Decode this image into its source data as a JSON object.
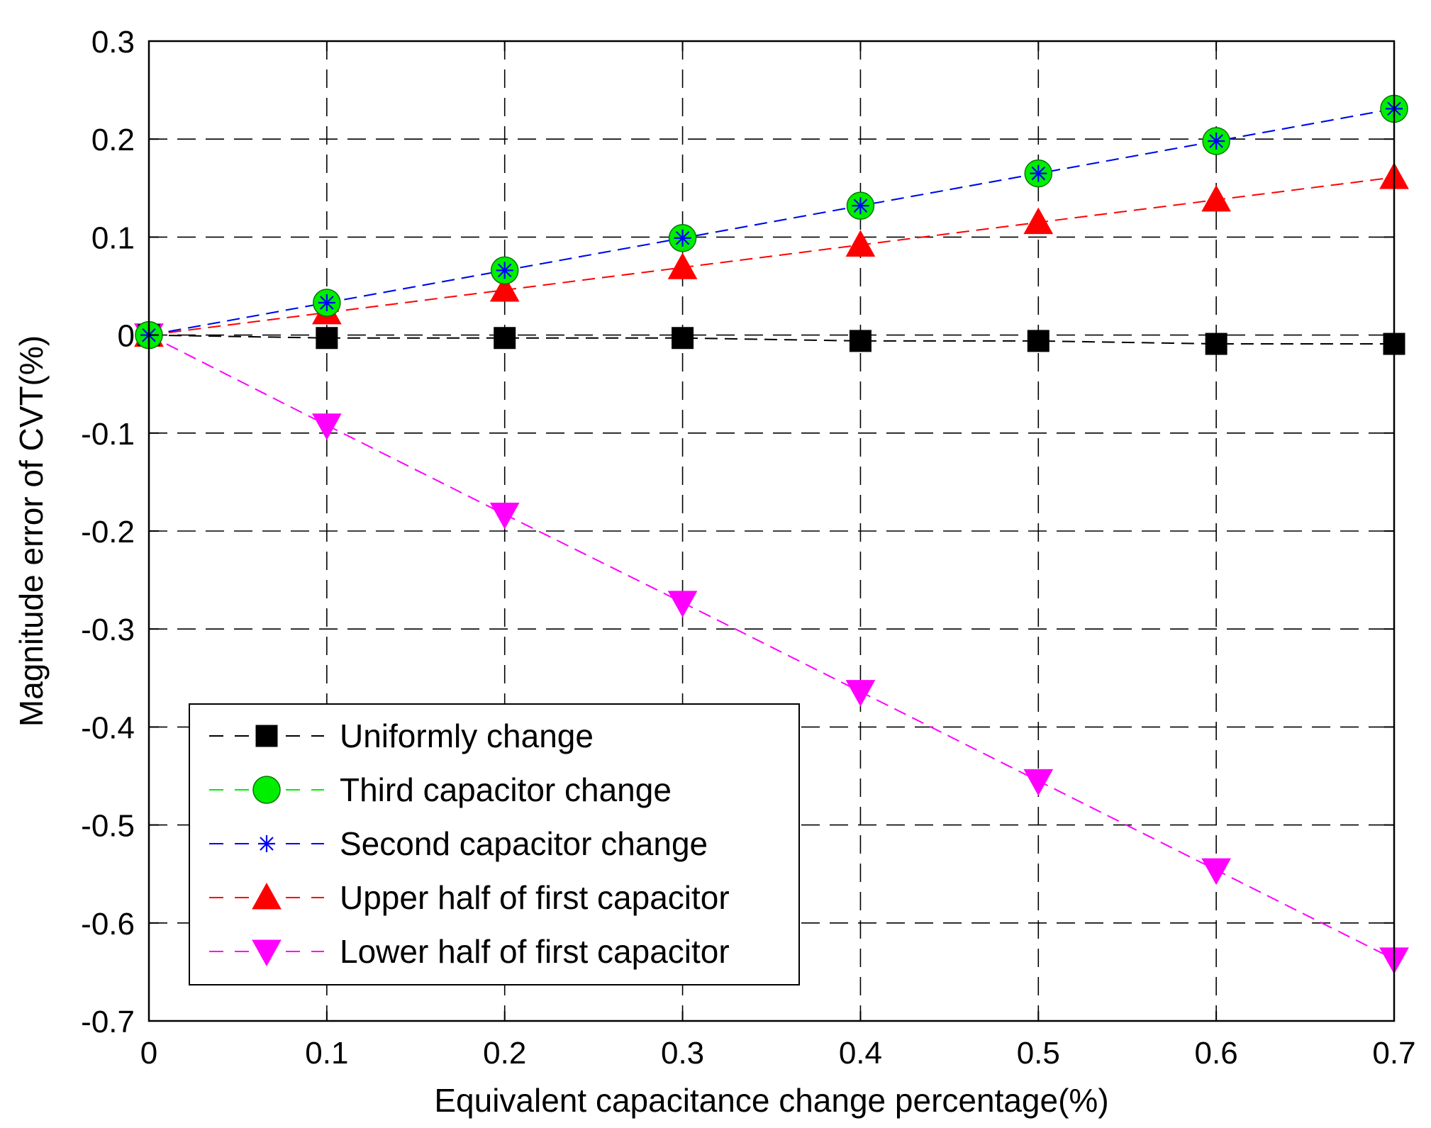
{
  "chart_data": {
    "type": "line",
    "title": "",
    "xlabel": "Equivalent capacitance change percentage(%)",
    "ylabel": "Magnitude error of CVT(%)",
    "xlim": [
      0,
      0.7
    ],
    "ylim": [
      -0.7,
      0.3
    ],
    "xticks": [
      0,
      0.1,
      0.2,
      0.3,
      0.4,
      0.5,
      0.6,
      0.7
    ],
    "yticks": [
      0.3,
      0.2,
      0.1,
      0,
      -0.1,
      -0.2,
      -0.3,
      -0.4,
      -0.5,
      -0.6,
      -0.7
    ],
    "xtick_labels": [
      "0",
      "0.1",
      "0.2",
      "0.3",
      "0.4",
      "0.5",
      "0.6",
      "0.7"
    ],
    "ytick_labels": [
      "0.3",
      "0.2",
      "0.1",
      "0",
      "-0.1",
      "-0.2",
      "-0.3",
      "-0.4",
      "-0.5",
      "-0.6",
      "-0.7"
    ],
    "grid": true,
    "legend_position": "bottom-left",
    "x": [
      0,
      0.1,
      0.2,
      0.3,
      0.4,
      0.5,
      0.6,
      0.7
    ],
    "series": [
      {
        "name": "Uniformly change",
        "color": "#000000",
        "marker": "square",
        "values": [
          0,
          -0.003,
          -0.003,
          -0.003,
          -0.006,
          -0.006,
          -0.009,
          -0.009
        ]
      },
      {
        "name": "Third capacitor change",
        "color": "#00ee00",
        "marker": "circle",
        "values": [
          0,
          0.033,
          0.066,
          0.099,
          0.132,
          0.165,
          0.198,
          0.231
        ]
      },
      {
        "name": "Second capacitor change",
        "color": "#0000ff",
        "marker": "star",
        "values": [
          0,
          0.033,
          0.066,
          0.099,
          0.132,
          0.165,
          0.198,
          0.231
        ]
      },
      {
        "name": "Upper half of first capacitor",
        "color": "#ff0000",
        "marker": "triangle-up",
        "values": [
          0,
          0.023,
          0.046,
          0.069,
          0.092,
          0.115,
          0.138,
          0.161
        ]
      },
      {
        "name": "Lower half of first capacitor",
        "color": "#ff00ff",
        "marker": "triangle-down",
        "values": [
          0,
          -0.092,
          -0.183,
          -0.273,
          -0.364,
          -0.455,
          -0.546,
          -0.637
        ]
      }
    ]
  }
}
